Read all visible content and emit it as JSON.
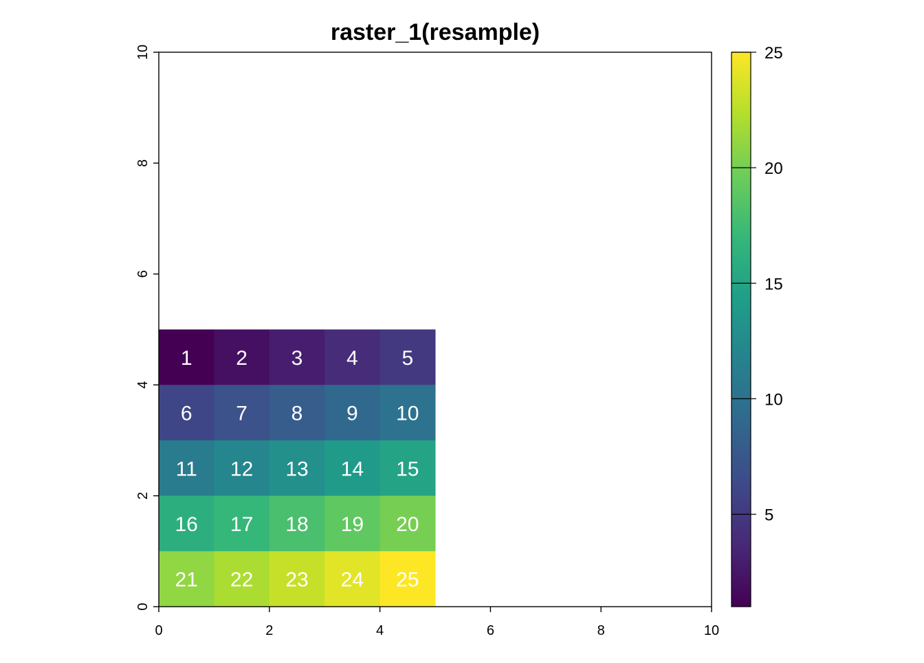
{
  "chart_data": {
    "type": "heatmap",
    "title": "raster_1(resample)",
    "xlabel": "",
    "ylabel": "",
    "xlim": [
      0,
      10
    ],
    "ylim": [
      0,
      10
    ],
    "x_ticks": [
      "0",
      "2",
      "4",
      "6",
      "8",
      "10"
    ],
    "y_ticks": [
      "0",
      "2",
      "4",
      "6",
      "8",
      "10"
    ],
    "grid": false,
    "cells": {
      "extent": {
        "xmin": 0,
        "xmax": 5,
        "ymin": 0,
        "ymax": 5
      },
      "ncols": 5,
      "nrows": 5,
      "values": [
        [
          1,
          2,
          3,
          4,
          5
        ],
        [
          6,
          7,
          8,
          9,
          10
        ],
        [
          11,
          12,
          13,
          14,
          15
        ],
        [
          16,
          17,
          18,
          19,
          20
        ],
        [
          21,
          22,
          23,
          24,
          25
        ]
      ]
    },
    "legend": {
      "placement": "right",
      "colormap": "viridis",
      "range": [
        1,
        25
      ],
      "ticks": [
        "5",
        "10",
        "15",
        "20",
        "25"
      ]
    }
  },
  "colors": {
    "viridis_stops": [
      "#440154",
      "#482878",
      "#3E4A89",
      "#31688E",
      "#26828E",
      "#1F9E89",
      "#35B779",
      "#6DCD59",
      "#B4DE2C",
      "#FDE725"
    ]
  }
}
